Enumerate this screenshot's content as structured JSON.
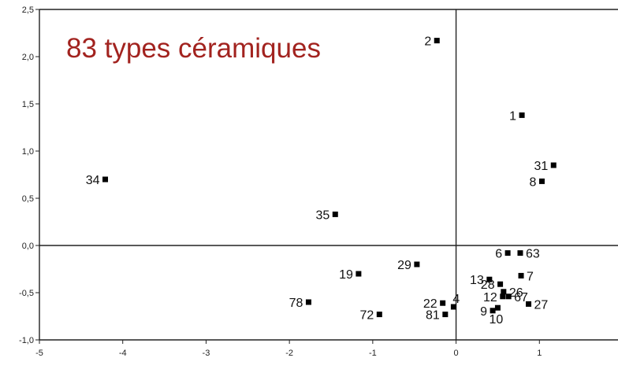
{
  "title": "83 types céramiques",
  "chart_data": {
    "type": "scatter",
    "title": "83 types céramiques",
    "xlabel": "",
    "ylabel": "",
    "xlim": [
      -5,
      2
    ],
    "ylim": [
      -1.0,
      2.5
    ],
    "x_ticks": [
      -5,
      -4,
      -3,
      -2,
      -1,
      0,
      1,
      2
    ],
    "x_tick_labels": [
      "-5",
      "-4",
      "-3",
      "-2",
      "-1",
      "0",
      "1",
      "2"
    ],
    "y_ticks": [
      -1.0,
      -0.5,
      0.0,
      0.5,
      1.0,
      1.5,
      2.0,
      2.5
    ],
    "y_tick_labels": [
      "-1,0",
      "-0,5",
      "0,0",
      "0,5",
      "1,0",
      "1,5",
      "2,0",
      "2,5"
    ],
    "grid": false,
    "reference_lines": {
      "x": 0,
      "y": 0
    },
    "points": [
      {
        "label": "2",
        "x": -0.23,
        "y": 2.17
      },
      {
        "label": "1",
        "x": 0.79,
        "y": 1.38
      },
      {
        "label": "31",
        "x": 1.17,
        "y": 0.85
      },
      {
        "label": "8",
        "x": 1.03,
        "y": 0.68
      },
      {
        "label": "34",
        "x": -4.21,
        "y": 0.7
      },
      {
        "label": "35",
        "x": -1.45,
        "y": 0.33
      },
      {
        "label": "6",
        "x": 0.62,
        "y": -0.08
      },
      {
        "label": "63",
        "x": 0.77,
        "y": -0.08
      },
      {
        "label": "29",
        "x": -0.47,
        "y": -0.2
      },
      {
        "label": "19",
        "x": -1.17,
        "y": -0.3
      },
      {
        "label": "13",
        "x": 0.4,
        "y": -0.36
      },
      {
        "label": "28",
        "x": 0.53,
        "y": -0.41
      },
      {
        "label": "7",
        "x": 0.78,
        "y": -0.32
      },
      {
        "label": "26",
        "x": 0.57,
        "y": -0.49
      },
      {
        "label": "12",
        "x": 0.56,
        "y": -0.54
      },
      {
        "label": "67",
        "x": 0.63,
        "y": -0.54
      },
      {
        "label": "27",
        "x": 0.87,
        "y": -0.62
      },
      {
        "label": "78",
        "x": -1.77,
        "y": -0.6
      },
      {
        "label": "4",
        "x": -0.03,
        "y": -0.65
      },
      {
        "label": "22",
        "x": -0.16,
        "y": -0.61
      },
      {
        "label": "9",
        "x": 0.44,
        "y": -0.69
      },
      {
        "label": "72",
        "x": -0.92,
        "y": -0.73
      },
      {
        "label": "81",
        "x": -0.13,
        "y": -0.73
      },
      {
        "label": "10",
        "x": 0.5,
        "y": -0.66
      }
    ],
    "colors": {
      "title": "#a2231f",
      "points": "#000000"
    }
  }
}
